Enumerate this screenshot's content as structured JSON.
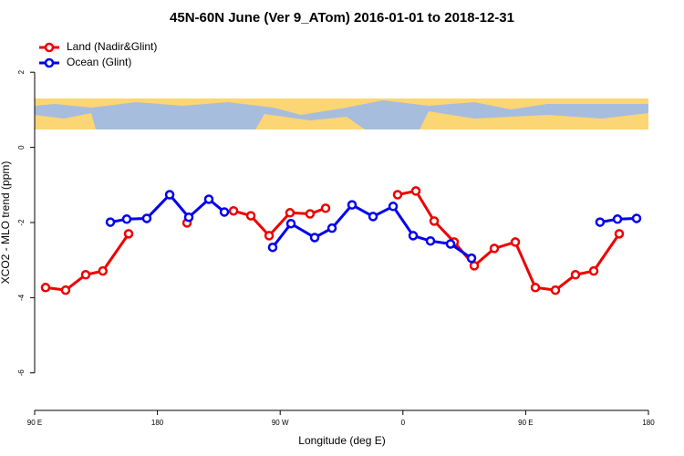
{
  "chart_data": {
    "type": "line",
    "title": "45N-60N June (Ver 9_ATom)   2016-01-01 to 2018-12-31",
    "xlabel": "Longitude (deg E)",
    "ylabel": "XCO2 - MLO trend (ppm)",
    "xlim": [
      90,
      540
    ],
    "xticks": [
      {
        "value": 90,
        "label": "90 E"
      },
      180,
      {
        "value": 270,
        "label": "90 W"
      },
      {
        "value": 360,
        "label": "0"
      },
      {
        "value": 450,
        "label": "90 E"
      },
      {
        "value": 540,
        "label": "180"
      }
    ],
    "ylim": [
      -7,
      3
    ],
    "yticks": [
      -6,
      -4,
      -2,
      0,
      2
    ],
    "legend": "top-left",
    "series": [
      {
        "name": "Land (Nadir&Glint)",
        "color": "#ee0000",
        "x": [
          98,
          112.7,
          127.4,
          140,
          158.9,
          null,
          201.7,
          null,
          235.8,
          248.5,
          261.9,
          277.2,
          291.9,
          303.3,
          null,
          356.1,
          369.5,
          382.9,
          397.6,
          412.3,
          427,
          442.4,
          457.1,
          471.8,
          486.5,
          499.9,
          518.6
        ],
        "values": [
          -3.73,
          -3.8,
          -3.39,
          -3.29,
          -2.3,
          null,
          -2.01,
          null,
          -1.69,
          -1.82,
          -2.35,
          -1.74,
          -1.77,
          -1.62,
          null,
          -1.26,
          -1.16,
          -1.96,
          -2.52,
          -3.15,
          -2.69,
          -2.52,
          -3.73,
          -3.8,
          -3.39,
          -3.29,
          -2.3
        ]
      },
      {
        "name": "Ocean (Glint)",
        "color": "#0000ee",
        "x": [
          145.5,
          157.5,
          172.2,
          189,
          203,
          217.7,
          229.1,
          null,
          264.5,
          277.9,
          295.3,
          308,
          322.7,
          338.1,
          352.8,
          367.5,
          380.2,
          394.9,
          410.3,
          null,
          504.5,
          517.3,
          531.3
        ],
        "values": [
          -1.99,
          -1.91,
          -1.89,
          -1.26,
          -1.86,
          -1.38,
          -1.72,
          null,
          -2.66,
          -2.03,
          -2.4,
          -2.15,
          -1.53,
          -1.84,
          -1.57,
          -2.35,
          -2.49,
          -2.57,
          -2.95,
          null,
          -1.99,
          -1.91,
          -1.89
        ]
      }
    ]
  }
}
